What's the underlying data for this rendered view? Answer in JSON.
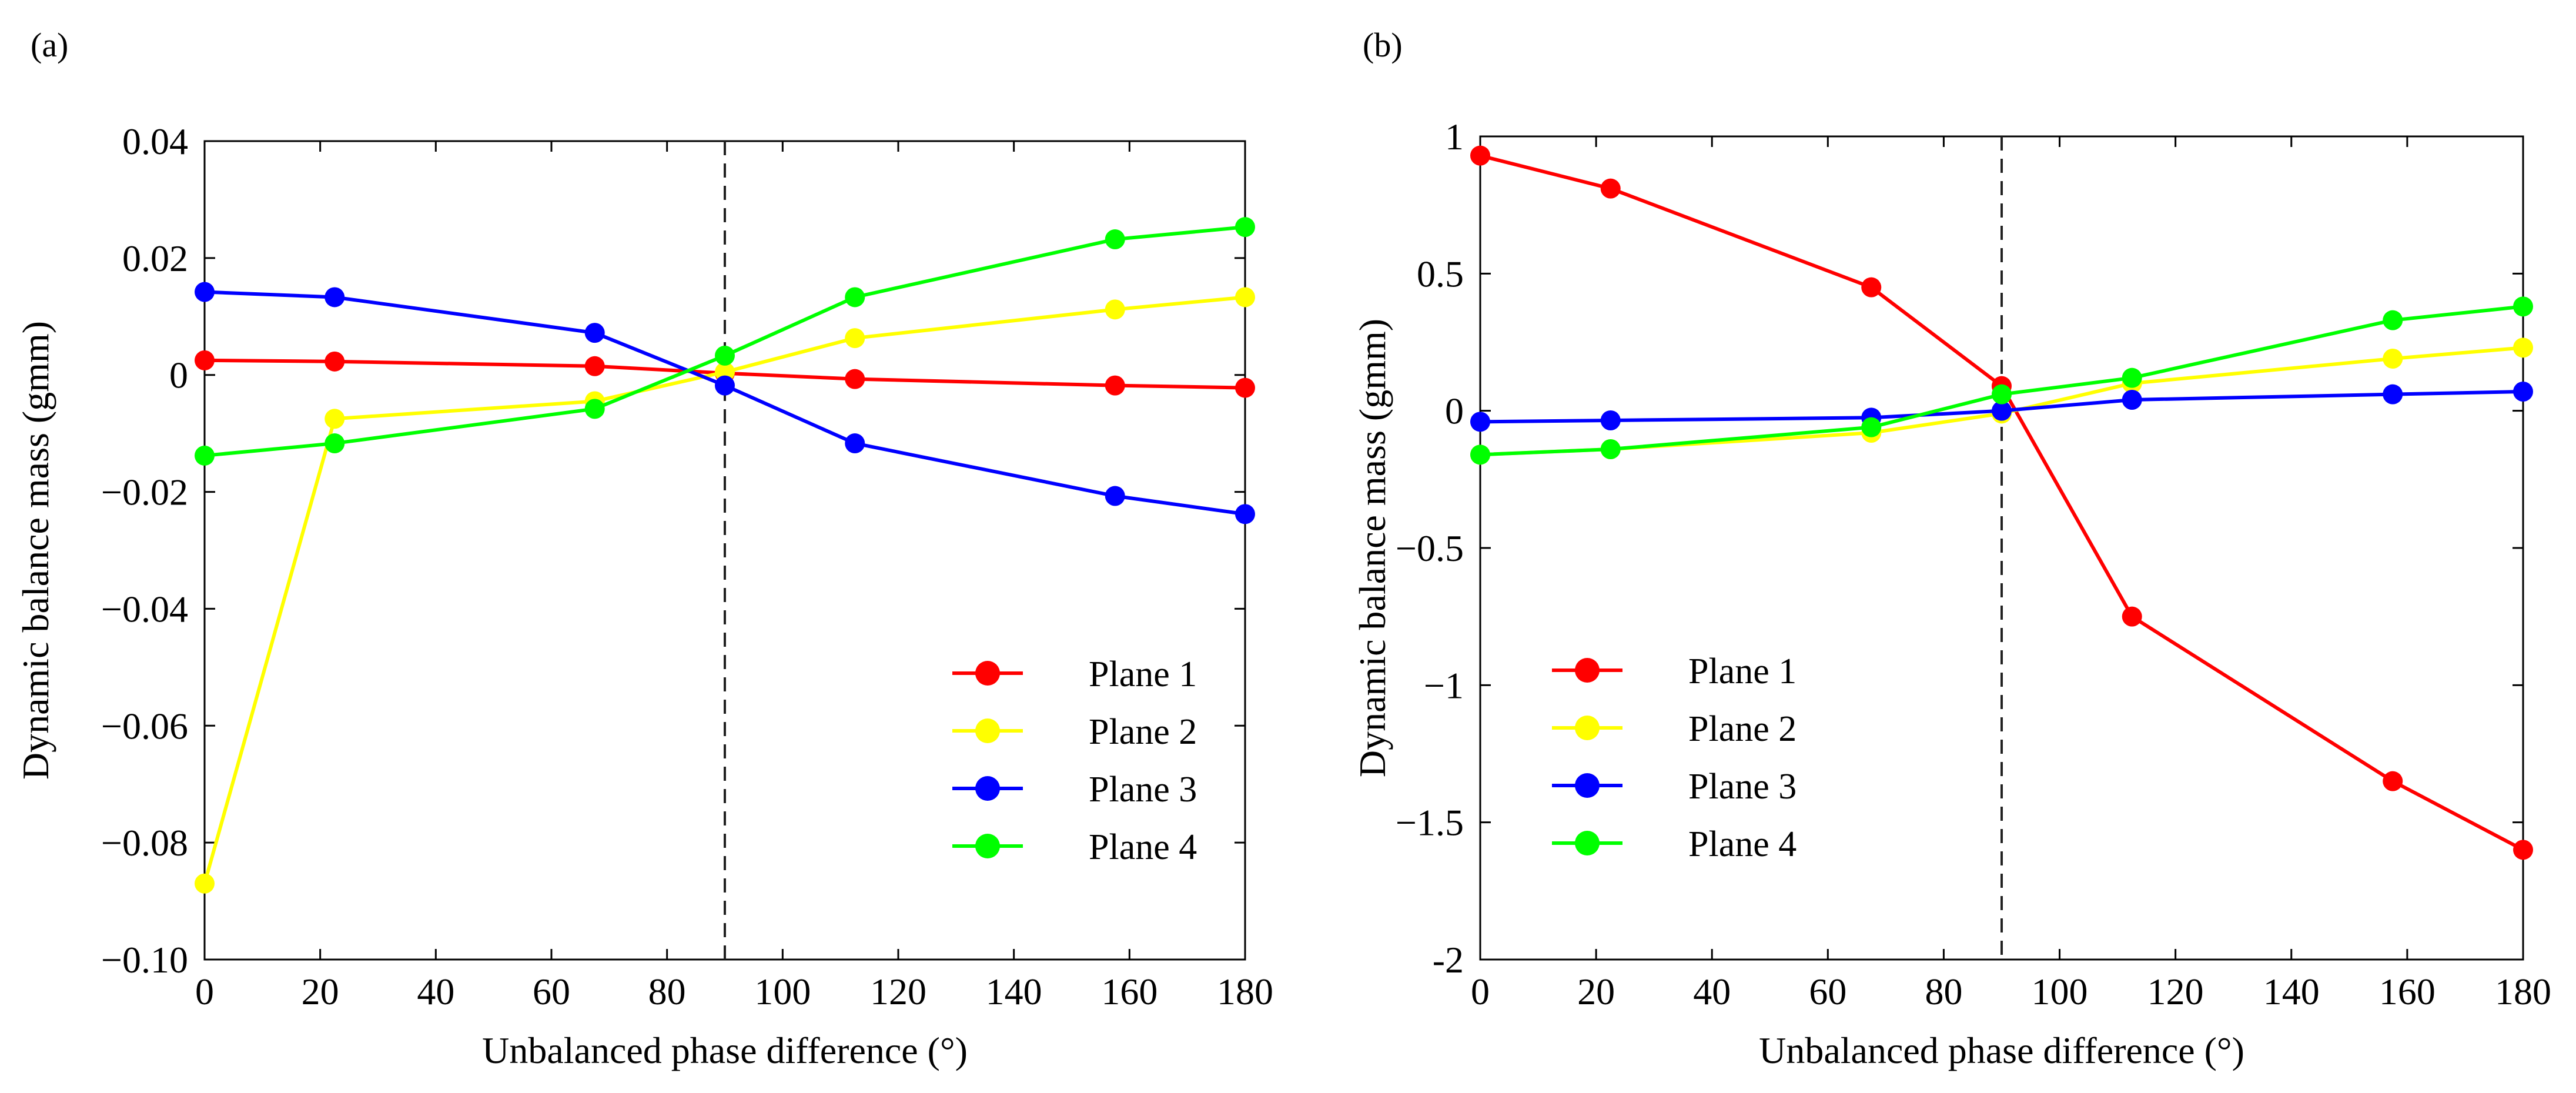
{
  "chart_data": [
    {
      "panel_label": "(a)",
      "type": "line",
      "xlabel": "Unbalanced phase difference (°)",
      "ylabel": "Dynamic balance mass (gmm)",
      "xlim": [
        0,
        180
      ],
      "ylim": [
        -0.1,
        0.04
      ],
      "x_ticks": [
        0,
        20,
        40,
        60,
        80,
        100,
        120,
        140,
        160,
        180
      ],
      "x_tick_labels": [
        "0",
        "20",
        "40",
        "60",
        "80",
        "100",
        "120",
        "140",
        "160",
        "180"
      ],
      "y_ticks": [
        0.04,
        0.02,
        0,
        -0.02,
        -0.04,
        -0.06,
        -0.08,
        -0.1
      ],
      "y_tick_labels": [
        "0.04",
        "0.02",
        "0",
        "−0.02",
        "−0.04",
        "−0.06",
        "−0.08",
        "−0.10"
      ],
      "vline_x": 90,
      "legend_position": "bottom-right",
      "x": [
        0,
        22.5,
        67.5,
        90,
        112.5,
        157.5,
        180
      ],
      "series": [
        {
          "name": "Plane 1",
          "color": "#ff0000",
          "values": [
            0.0025,
            0.0023,
            0.0015,
            0.0003,
            -0.0007,
            -0.0018,
            -0.0022
          ]
        },
        {
          "name": "Plane 2",
          "color": "#ffff00",
          "values": [
            -0.087,
            -0.0075,
            -0.0045,
            0.0005,
            0.0063,
            0.0112,
            0.0133
          ]
        },
        {
          "name": "Plane 3",
          "color": "#0000ff",
          "values": [
            0.0142,
            0.0133,
            0.0072,
            -0.0018,
            -0.0117,
            -0.0207,
            -0.0238
          ]
        },
        {
          "name": "Plane 4",
          "color": "#00ff00",
          "values": [
            -0.0138,
            -0.0117,
            -0.0058,
            0.0033,
            0.0133,
            0.0232,
            0.0253
          ]
        }
      ]
    },
    {
      "panel_label": "(b)",
      "type": "line",
      "xlabel": "Unbalanced phase difference (°)",
      "ylabel": "Dynamic balance mass (gmm)",
      "xlim": [
        0,
        180
      ],
      "ylim": [
        -2,
        1
      ],
      "x_ticks": [
        0,
        20,
        40,
        60,
        80,
        100,
        120,
        140,
        160,
        180
      ],
      "x_tick_labels": [
        "0",
        "20",
        "40",
        "60",
        "80",
        "100",
        "120",
        "140",
        "160",
        "180"
      ],
      "y_ticks": [
        1,
        0.5,
        0,
        -0.5,
        -1,
        -1.5,
        -2
      ],
      "y_tick_labels": [
        "1",
        "0.5",
        "0",
        "−0.5",
        "−1",
        "−1.5",
        "-2"
      ],
      "vline_x": 90,
      "legend_position": "bottom-left",
      "x": [
        0,
        22.5,
        67.5,
        90,
        112.5,
        157.5,
        180
      ],
      "series": [
        {
          "name": "Plane 1",
          "color": "#ff0000",
          "values": [
            0.93,
            0.81,
            0.45,
            0.09,
            -0.75,
            -1.35,
            -1.6
          ]
        },
        {
          "name": "Plane 2",
          "color": "#ffff00",
          "values": [
            -0.16,
            -0.14,
            -0.08,
            -0.01,
            0.1,
            0.19,
            0.23
          ]
        },
        {
          "name": "Plane 3",
          "color": "#0000ff",
          "values": [
            -0.04,
            -0.035,
            -0.025,
            0.0,
            0.04,
            0.06,
            0.07
          ]
        },
        {
          "name": "Plane 4",
          "color": "#00ff00",
          "values": [
            -0.16,
            -0.14,
            -0.06,
            0.06,
            0.12,
            0.33,
            0.38
          ]
        }
      ]
    }
  ]
}
